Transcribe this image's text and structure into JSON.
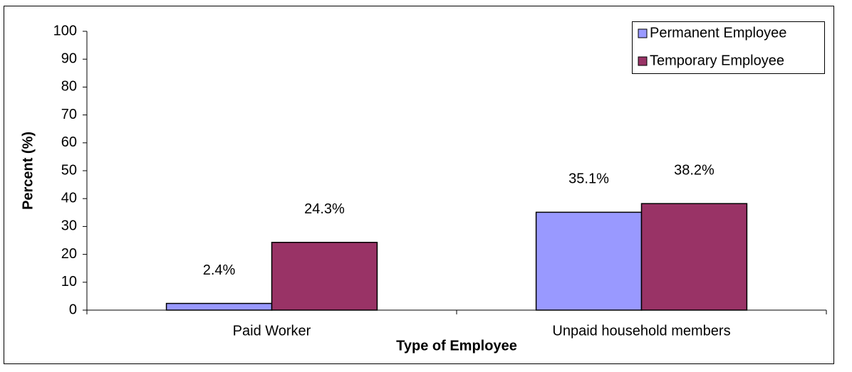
{
  "chart_data": {
    "type": "bar",
    "x_label": "Type of Employee",
    "y_label": "Percent (%)",
    "categories": [
      "Paid Worker",
      "Unpaid household members"
    ],
    "series": [
      {
        "name": "Permanent Employee",
        "color": "#9999ff",
        "values": [
          2.4,
          35.1
        ],
        "value_labels": [
          "2.4%",
          "35.1%"
        ]
      },
      {
        "name": "Temporary Employee",
        "color": "#993366",
        "values": [
          24.3,
          38.2
        ],
        "value_labels": [
          "24.3%",
          "38.2%"
        ]
      }
    ],
    "ylim": [
      0,
      100
    ],
    "yticks": [
      0,
      10,
      20,
      30,
      40,
      50,
      60,
      70,
      80,
      90,
      100
    ],
    "legend": "upper right"
  }
}
